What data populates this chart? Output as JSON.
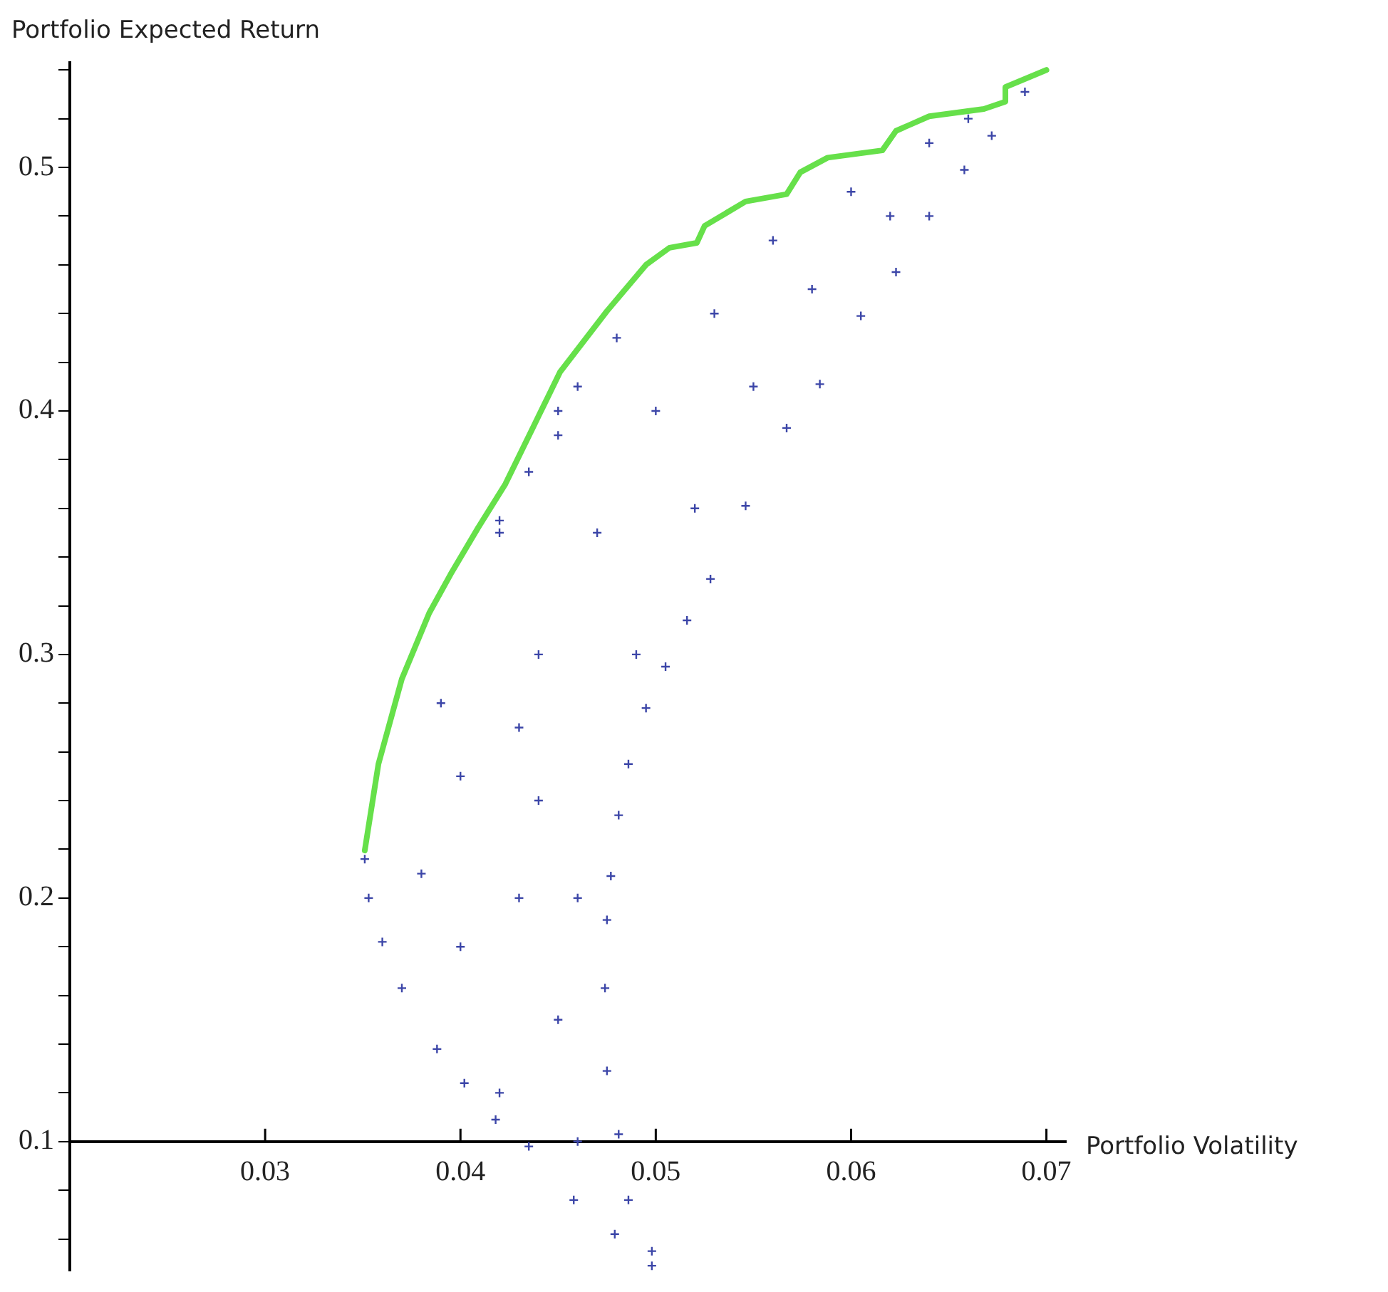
{
  "chart_data": {
    "type": "scatter",
    "xlabel": "Portfolio Volatility",
    "ylabel": "Portfolio Expected Return",
    "xlim": [
      0.02,
      0.071
    ],
    "ylim": [
      0.047,
      0.543
    ],
    "xticks": [
      0.03,
      0.04,
      0.05,
      0.06,
      0.07
    ],
    "yticks": [
      {
        "value": 0.06,
        "label": null
      },
      {
        "value": 0.08,
        "label": null
      },
      0.1,
      {
        "value": 0.12,
        "label": null
      },
      {
        "value": 0.14,
        "label": null
      },
      {
        "value": 0.16,
        "label": null
      },
      {
        "value": 0.18,
        "label": null
      },
      0.2,
      {
        "value": 0.22,
        "label": null
      },
      {
        "value": 0.24,
        "label": null
      },
      {
        "value": 0.26,
        "label": null
      },
      {
        "value": 0.28,
        "label": null
      },
      0.3,
      {
        "value": 0.32,
        "label": null
      },
      {
        "value": 0.34,
        "label": null
      },
      {
        "value": 0.36,
        "label": null
      },
      {
        "value": 0.38,
        "label": null
      },
      0.4,
      {
        "value": 0.42,
        "label": null
      },
      {
        "value": 0.44,
        "label": null
      },
      {
        "value": 0.46,
        "label": null
      },
      {
        "value": 0.48,
        "label": null
      },
      0.5,
      {
        "value": 0.52,
        "label": null
      },
      {
        "value": 0.54,
        "label": null
      }
    ],
    "grid": false,
    "legend": false,
    "series": [
      {
        "type": "scatter",
        "marker": "cross",
        "color": "#3c46a8",
        "x": [
          0.0498,
          0.0479,
          0.0458,
          0.0435,
          0.0418,
          0.0402,
          0.0388,
          0.037,
          0.036,
          0.0353,
          0.0351,
          0.0498,
          0.0486,
          0.0481,
          0.0475,
          0.0474,
          0.0475,
          0.0477,
          0.0481,
          0.0486,
          0.0495,
          0.0505,
          0.0516,
          0.0528,
          0.0546,
          0.0567,
          0.0584,
          0.0605,
          0.0623,
          0.064,
          0.0658,
          0.0672,
          0.0689,
          0.04,
          0.043,
          0.045,
          0.044,
          0.047,
          0.05,
          0.053,
          0.056,
          0.06,
          0.064,
          0.042,
          0.046,
          0.04,
          0.039,
          0.042,
          0.045,
          0.048,
          0.052,
          0.049,
          0.044,
          0.046,
          0.038,
          0.043,
          0.055,
          0.058,
          0.062,
          0.066,
          0.042,
          0.0435,
          0.045,
          0.046
        ],
        "values": [
          0.049,
          0.062,
          0.076,
          0.098,
          0.109,
          0.124,
          0.138,
          0.163,
          0.182,
          0.2,
          0.216,
          0.055,
          0.076,
          0.103,
          0.129,
          0.163,
          0.191,
          0.209,
          0.234,
          0.255,
          0.278,
          0.295,
          0.314,
          0.331,
          0.361,
          0.393,
          0.411,
          0.439,
          0.457,
          0.48,
          0.499,
          0.513,
          0.531,
          0.25,
          0.2,
          0.15,
          0.3,
          0.35,
          0.4,
          0.44,
          0.47,
          0.49,
          0.51,
          0.12,
          0.1,
          0.18,
          0.28,
          0.35,
          0.39,
          0.43,
          0.36,
          0.3,
          0.24,
          0.2,
          0.21,
          0.27,
          0.41,
          0.45,
          0.48,
          0.52,
          0.355,
          0.375,
          0.4,
          0.41
        ]
      },
      {
        "type": "line",
        "marker": "none",
        "line_style": "solid",
        "color": "#66e04a",
        "x": [
          0.0351,
          0.0358,
          0.037,
          0.0384,
          0.0395,
          0.0409,
          0.0423,
          0.0437,
          0.0451,
          0.0475,
          0.0495,
          0.0507,
          0.0521,
          0.0525,
          0.0546,
          0.0567,
          0.0574,
          0.0588,
          0.0616,
          0.0623,
          0.064,
          0.0668,
          0.0679,
          0.0679,
          0.07
        ],
        "values": [
          0.2195,
          0.255,
          0.29,
          0.317,
          0.333,
          0.352,
          0.37,
          0.393,
          0.416,
          0.441,
          0.46,
          0.467,
          0.469,
          0.476,
          0.486,
          0.489,
          0.498,
          0.504,
          0.507,
          0.515,
          0.521,
          0.524,
          0.527,
          0.533,
          0.54
        ]
      }
    ]
  }
}
